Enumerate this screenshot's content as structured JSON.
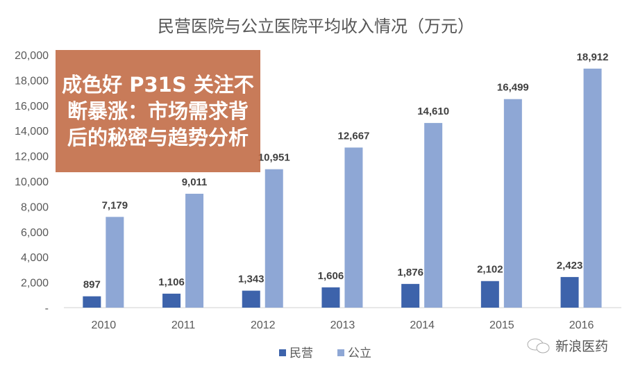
{
  "chart_data": {
    "type": "bar",
    "title": "民营医院与公立医院平均收入情况（万元）",
    "categories": [
      "2010",
      "2011",
      "2012",
      "2013",
      "2014",
      "2015",
      "2016"
    ],
    "series": [
      {
        "name": "民营",
        "color": "#3d63ab",
        "values": [
          897,
          1106,
          1343,
          1606,
          1876,
          2102,
          2423
        ],
        "labels": [
          "897",
          "1,106",
          "1,343",
          "1,606",
          "1,876",
          "2,102",
          "2,423"
        ]
      },
      {
        "name": "公立",
        "color": "#8ea7d5",
        "values": [
          7179,
          9011,
          10951,
          12667,
          14610,
          16499,
          18912
        ],
        "labels": [
          "7,179",
          "9,011",
          "10,951",
          "12,667",
          "14,610",
          "16,499",
          "18,912"
        ]
      }
    ],
    "ylim": [
      0,
      20000
    ],
    "yticks": [
      "-",
      "2,000",
      "4,000",
      "6,000",
      "8,000",
      "10,000",
      "12,000",
      "14,000",
      "16,000",
      "18,000",
      "20,000"
    ],
    "grid": false,
    "legend": "bottom"
  },
  "banner": {
    "text": "成色好 P31S 关注不断暴涨：市场需求背后的秘密与趋势分析"
  },
  "watermark": {
    "text": "新浪医药",
    "icon": "wechat-icon"
  }
}
